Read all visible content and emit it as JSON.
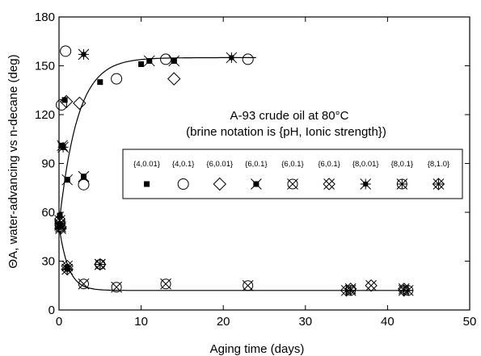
{
  "chart_data": {
    "type": "scatter",
    "title": "",
    "xlabel": "Aging time (days)",
    "ylabel": "ΘA, water-advancing vs n-decane (deg)",
    "xlim": [
      0,
      50
    ],
    "ylim": [
      0,
      180
    ],
    "xticks": [
      10,
      20,
      30,
      40,
      50
    ],
    "yticks": [
      0,
      30,
      60,
      90,
      120,
      150,
      180
    ],
    "tick_labels_x": [
      "10",
      "20",
      "30",
      "40",
      "50"
    ],
    "tick_labels_y": [
      "0",
      "30",
      "60",
      "90",
      "120",
      "150",
      "180"
    ],
    "x_zero_label": "0",
    "annotation": [
      "A-93 crude oil at 80°C",
      "(brine notation is {pH, Ionic strength})"
    ],
    "legend_position": "center-right",
    "series": [
      {
        "name": "{4,0.01}",
        "marker": "filled-square",
        "points": [
          [
            0.1,
            58
          ],
          [
            0.5,
            100
          ],
          [
            0.7,
            129
          ],
          [
            1,
            80
          ],
          [
            1,
            26
          ],
          [
            5,
            140
          ],
          [
            10,
            151
          ],
          [
            14,
            153
          ]
        ]
      },
      {
        "name": "{4,0.1}",
        "marker": "circle",
        "points": [
          [
            0.3,
            126
          ],
          [
            0.8,
            159
          ],
          [
            3,
            77
          ],
          [
            7,
            142
          ],
          [
            13,
            154
          ],
          [
            23,
            154
          ]
        ]
      },
      {
        "name": "{6,0.01}",
        "marker": "diamond",
        "points": [
          [
            0.9,
            128
          ],
          [
            2.5,
            127
          ],
          [
            14,
            142
          ]
        ]
      },
      {
        "name": "{6,0.1}",
        "marker": "x-filled-square",
        "points": [
          [
            0.1,
            52
          ],
          [
            0.4,
            101
          ],
          [
            1,
            80
          ],
          [
            3,
            82
          ],
          [
            11,
            153
          ],
          [
            14,
            153
          ]
        ]
      },
      {
        "name": "{6,0.1}",
        "marker": "circle-x",
        "points": [
          [
            0.1,
            55
          ],
          [
            3,
            16
          ],
          [
            7,
            14
          ],
          [
            13,
            16
          ],
          [
            23,
            15
          ]
        ]
      },
      {
        "name": "{6,0.1}",
        "marker": "diamond-x",
        "points": [
          [
            0.2,
            51
          ],
          [
            1,
            27
          ],
          [
            35.5,
            13
          ],
          [
            38,
            15
          ],
          [
            42,
            13
          ]
        ]
      },
      {
        "name": "{8,0.01}",
        "marker": "asterisk-square",
        "points": [
          [
            0.1,
            53
          ],
          [
            0.5,
            100
          ],
          [
            1,
            25
          ],
          [
            3,
            157
          ],
          [
            21,
            155
          ]
        ]
      },
      {
        "name": "{8,0.1}",
        "marker": "circle-plus-x",
        "points": [
          [
            0.1,
            53
          ],
          [
            5,
            28
          ],
          [
            35.5,
            12
          ],
          [
            42.5,
            12
          ]
        ]
      },
      {
        "name": "{8,1.0}",
        "marker": "diamond-plus-x",
        "points": [
          [
            0.2,
            50
          ],
          [
            1,
            25
          ],
          [
            5,
            28
          ],
          [
            35,
            12
          ],
          [
            42,
            12
          ]
        ]
      }
    ],
    "fit_curves": [
      {
        "shape": "rising",
        "start": 52,
        "plateau": 155
      },
      {
        "shape": "decaying",
        "start": 52,
        "plateau": 12
      }
    ]
  }
}
